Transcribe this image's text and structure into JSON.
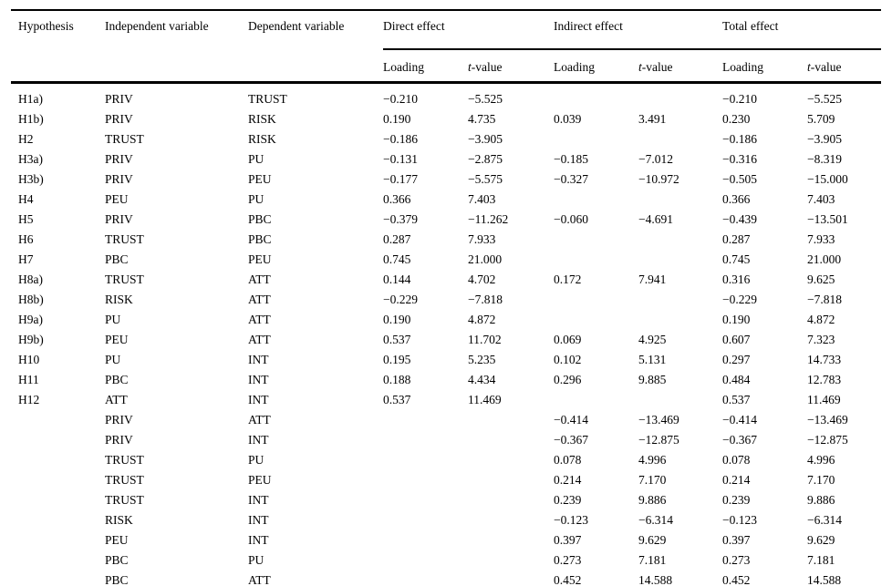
{
  "colors": {
    "background": "#ffffff",
    "text": "#000000",
    "rule": "#000000"
  },
  "table": {
    "column_groups": [
      {
        "label": "Direct effect"
      },
      {
        "label": "Indirect effect"
      },
      {
        "label": "Total effect"
      }
    ],
    "headers": {
      "hypothesis": "Hypothesis",
      "independent": "Independent variable",
      "dependent": "Dependent variable",
      "loading": "Loading",
      "tvalue_italic": "t",
      "tvalue_rest": "-value"
    },
    "rows": [
      [
        "H1a)",
        "PRIV",
        "TRUST",
        "−0.210",
        "−5.525",
        "",
        "",
        "−0.210",
        "−5.525"
      ],
      [
        "H1b)",
        "PRIV",
        "RISK",
        "0.190",
        "4.735",
        "0.039",
        "3.491",
        "0.230",
        "5.709"
      ],
      [
        "H2",
        "TRUST",
        "RISK",
        "−0.186",
        "−3.905",
        "",
        "",
        "−0.186",
        "−3.905"
      ],
      [
        "H3a)",
        "PRIV",
        "PU",
        "−0.131",
        "−2.875",
        "−0.185",
        "−7.012",
        "−0.316",
        "−8.319"
      ],
      [
        "H3b)",
        "PRIV",
        "PEU",
        "−0.177",
        "−5.575",
        "−0.327",
        "−10.972",
        "−0.505",
        "−15.000"
      ],
      [
        "H4",
        "PEU",
        "PU",
        "0.366",
        "7.403",
        "",
        "",
        "0.366",
        "7.403"
      ],
      [
        "H5",
        "PRIV",
        "PBC",
        "−0.379",
        "−11.262",
        "−0.060",
        "−4.691",
        "−0.439",
        "−13.501"
      ],
      [
        "H6",
        "TRUST",
        "PBC",
        "0.287",
        "7.933",
        "",
        "",
        "0.287",
        "7.933"
      ],
      [
        "H7",
        "PBC",
        "PEU",
        "0.745",
        "21.000",
        "",
        "",
        "0.745",
        "21.000"
      ],
      [
        "H8a)",
        "TRUST",
        "ATT",
        "0.144",
        "4.702",
        "0.172",
        "7.941",
        "0.316",
        "9.625"
      ],
      [
        "H8b)",
        "RISK",
        "ATT",
        "−0.229",
        "−7.818",
        "",
        "",
        "−0.229",
        "−7.818"
      ],
      [
        "H9a)",
        "PU",
        "ATT",
        "0.190",
        "4.872",
        "",
        "",
        "0.190",
        "4.872"
      ],
      [
        "H9b)",
        "PEU",
        "ATT",
        "0.537",
        "11.702",
        "0.069",
        "4.925",
        "0.607",
        "7.323"
      ],
      [
        "H10",
        "PU",
        "INT",
        "0.195",
        "5.235",
        "0.102",
        "5.131",
        "0.297",
        "14.733"
      ],
      [
        "H11",
        "PBC",
        "INT",
        "0.188",
        "4.434",
        "0.296",
        "9.885",
        "0.484",
        "12.783"
      ],
      [
        "H12",
        "ATT",
        "INT",
        "0.537",
        "11.469",
        "",
        "",
        "0.537",
        "11.469"
      ],
      [
        "",
        "PRIV",
        "ATT",
        "",
        "",
        "−0.414",
        "−13.469",
        "−0.414",
        "−13.469"
      ],
      [
        "",
        "PRIV",
        "INT",
        "",
        "",
        "−0.367",
        "−12.875",
        "−0.367",
        "−12.875"
      ],
      [
        "",
        "TRUST",
        "PU",
        "",
        "",
        "0.078",
        "4.996",
        "0.078",
        "4.996"
      ],
      [
        "",
        "TRUST",
        "PEU",
        "",
        "",
        "0.214",
        "7.170",
        "0.214",
        "7.170"
      ],
      [
        "",
        "TRUST",
        "INT",
        "",
        "",
        "0.239",
        "9.886",
        "0.239",
        "9.886"
      ],
      [
        "",
        "RISK",
        "INT",
        "",
        "",
        "−0.123",
        "−6.314",
        "−0.123",
        "−6.314"
      ],
      [
        "",
        "PEU",
        "INT",
        "",
        "",
        "0.397",
        "9.629",
        "0.397",
        "9.629"
      ],
      [
        "",
        "PBC",
        "PU",
        "",
        "",
        "0.273",
        "7.181",
        "0.273",
        "7.181"
      ],
      [
        "",
        "PBC",
        "ATT",
        "",
        "",
        "0.452",
        "14.588",
        "0.452",
        "14.588"
      ]
    ]
  }
}
